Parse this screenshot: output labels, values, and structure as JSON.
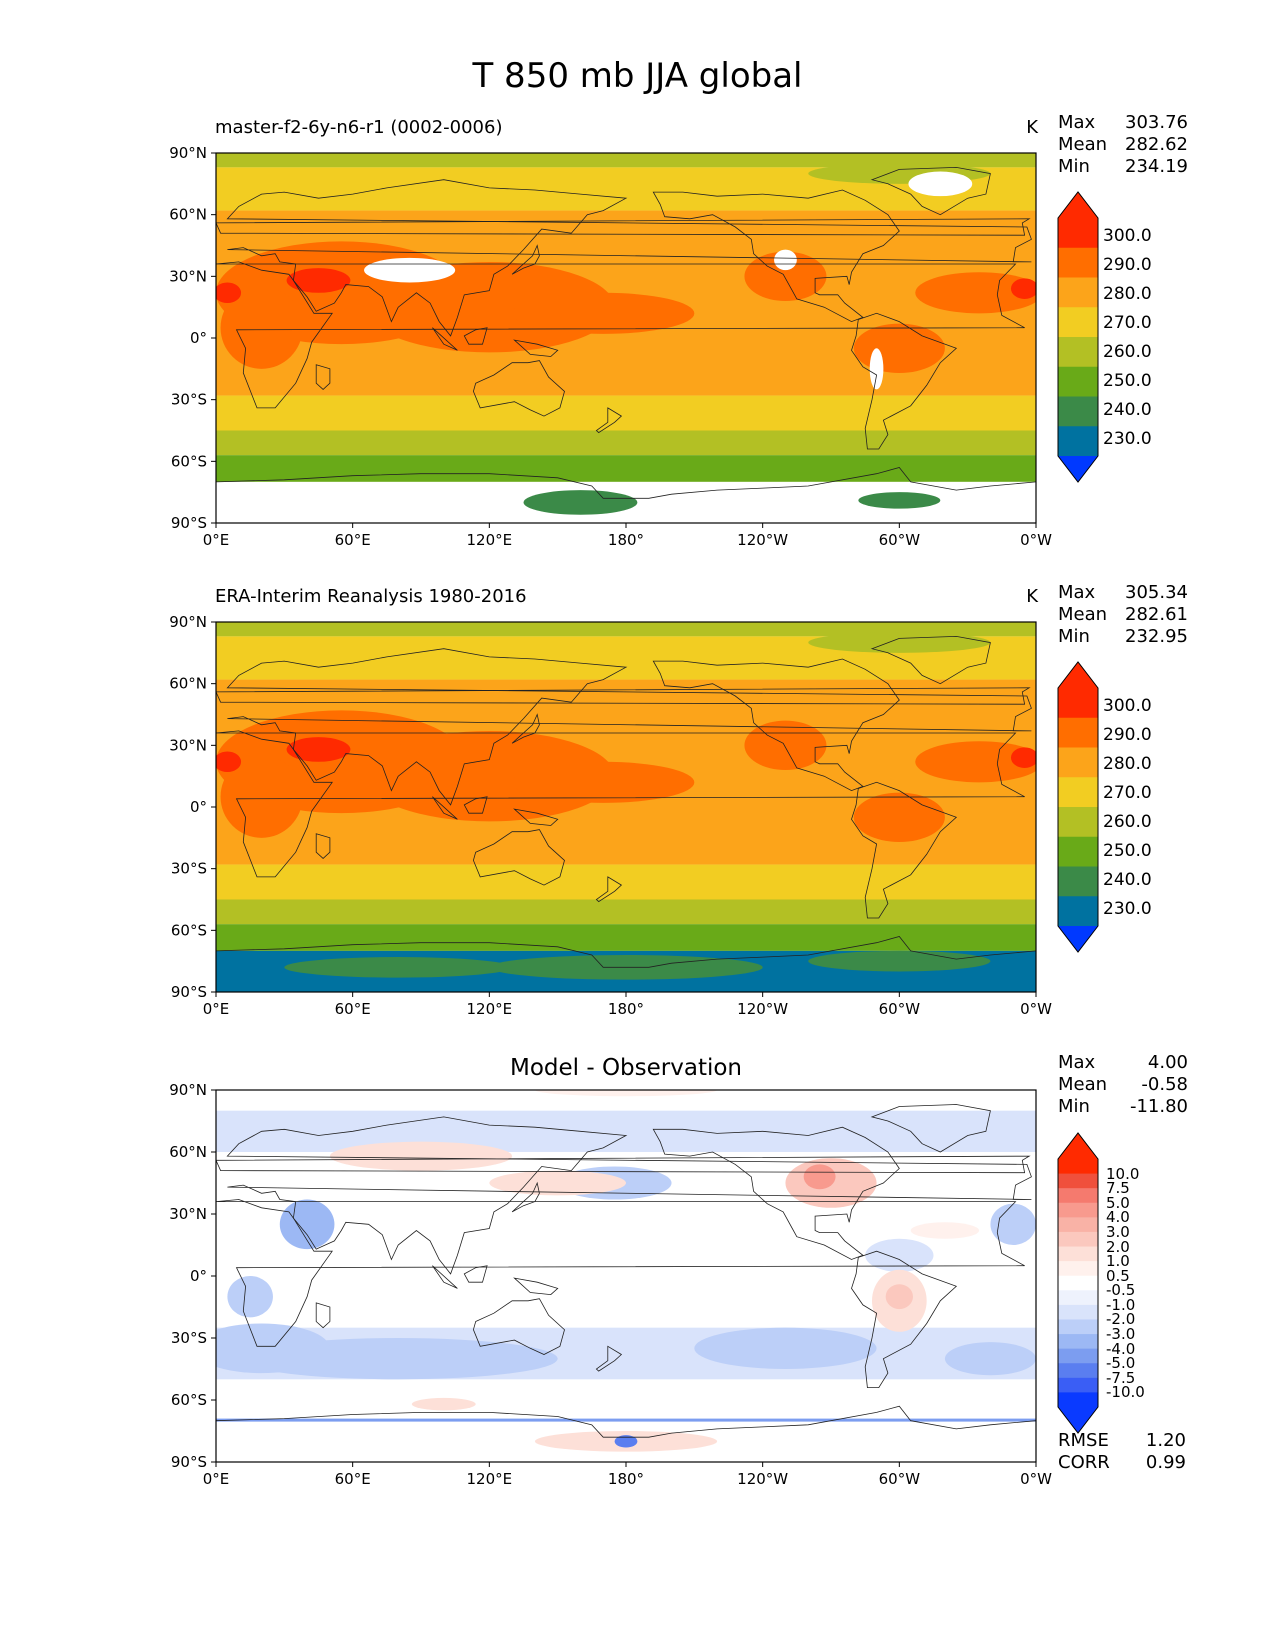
{
  "figure": {
    "title": "T 850 mb JJA global"
  },
  "axes": {
    "lat_ticks": [
      "90°N",
      "60°N",
      "30°N",
      "0°",
      "30°S",
      "60°S",
      "90°S"
    ],
    "lon_ticks": [
      "0°E",
      "60°E",
      "120°E",
      "180°",
      "120°W",
      "60°W",
      "0°W"
    ]
  },
  "panels": [
    {
      "id": "model",
      "title": "master-f2-6y-n6-r1 (0002-0006)",
      "units": "K",
      "stats": [
        {
          "label": "Max",
          "value": "303.76"
        },
        {
          "label": "Mean",
          "value": "282.62"
        },
        {
          "label": "Min",
          "value": "234.19"
        }
      ]
    },
    {
      "id": "obs",
      "title": "ERA-Interim Reanalysis 1980-2016",
      "units": "K",
      "stats": [
        {
          "label": "Max",
          "value": "305.34"
        },
        {
          "label": "Mean",
          "value": "282.61"
        },
        {
          "label": "Min",
          "value": "232.95"
        }
      ]
    },
    {
      "id": "diff",
      "title": "Model - Observation",
      "units": "",
      "stats": [
        {
          "label": "Max",
          "value": "4.00"
        },
        {
          "label": "Mean",
          "value": "-0.58"
        },
        {
          "label": "Min",
          "value": "-11.80"
        }
      ],
      "metrics": [
        {
          "label": "RMSE",
          "value": "1.20"
        },
        {
          "label": "CORR",
          "value": "0.99"
        }
      ]
    }
  ],
  "colorbars": {
    "temperature": {
      "labels": [
        "300.0",
        "290.0",
        "280.0",
        "270.0",
        "260.0",
        "250.0",
        "240.0",
        "230.0"
      ],
      "colors": [
        "#ff2a00",
        "#ff6e00",
        "#fca41a",
        "#f2cd22",
        "#b3c024",
        "#69aa18",
        "#3b8a48",
        "#0072a0",
        "#0039ff"
      ]
    },
    "difference": {
      "labels": [
        "10.0",
        "7.5",
        "5.0",
        "4.0",
        "3.0",
        "2.0",
        "1.0",
        "0.5",
        "-0.5",
        "-1.0",
        "-2.0",
        "-3.0",
        "-4.0",
        "-5.0",
        "-7.5",
        "-10.0"
      ],
      "colors": [
        "#ff2a00",
        "#f0503c",
        "#f57a6e",
        "#f89a8e",
        "#f9b2a6",
        "#fbc8be",
        "#fde0d8",
        "#fff1ed",
        "#ffffff",
        "#eef2fd",
        "#d9e3fb",
        "#bccff8",
        "#9cb8f4",
        "#7c9df0",
        "#5a7ef0",
        "#3a5ef5",
        "#0a3aff"
      ]
    }
  },
  "chart_data": [
    {
      "type": "heatmap",
      "title": "master-f2-6y-n6-r1 (0002-0006)",
      "field": "T 850 mb JJA global",
      "units": "K",
      "x_ticks": [
        "0°E",
        "60°E",
        "120°E",
        "180°",
        "120°W",
        "60°W",
        "0°W"
      ],
      "y_ticks": [
        "90°N",
        "60°N",
        "30°N",
        "0°",
        "30°S",
        "60°S",
        "90°S"
      ],
      "color_levels": [
        230,
        240,
        250,
        260,
        270,
        280,
        290,
        300
      ],
      "max": 303.76,
      "mean": 282.62,
      "min": 234.19
    },
    {
      "type": "heatmap",
      "title": "ERA-Interim Reanalysis 1980-2016",
      "field": "T 850 mb JJA global",
      "units": "K",
      "x_ticks": [
        "0°E",
        "60°E",
        "120°E",
        "180°",
        "120°W",
        "60°W",
        "0°W"
      ],
      "y_ticks": [
        "90°N",
        "60°N",
        "30°N",
        "0°",
        "30°S",
        "60°S",
        "90°S"
      ],
      "color_levels": [
        230,
        240,
        250,
        260,
        270,
        280,
        290,
        300
      ],
      "max": 305.34,
      "mean": 282.61,
      "min": 232.95
    },
    {
      "type": "heatmap",
      "title": "Model - Observation",
      "field": "T 850 mb JJA global",
      "x_ticks": [
        "0°E",
        "60°E",
        "120°E",
        "180°",
        "120°W",
        "60°W",
        "0°W"
      ],
      "y_ticks": [
        "90°N",
        "60°N",
        "30°N",
        "0°",
        "30°S",
        "60°S",
        "90°S"
      ],
      "color_levels": [
        -10,
        -7.5,
        -5,
        -4,
        -3,
        -2,
        -1,
        -0.5,
        0.5,
        1,
        2,
        3,
        4,
        5,
        7.5,
        10
      ],
      "max": 4.0,
      "mean": -0.58,
      "min": -11.8,
      "rmse": 1.2,
      "corr": 0.99
    }
  ]
}
